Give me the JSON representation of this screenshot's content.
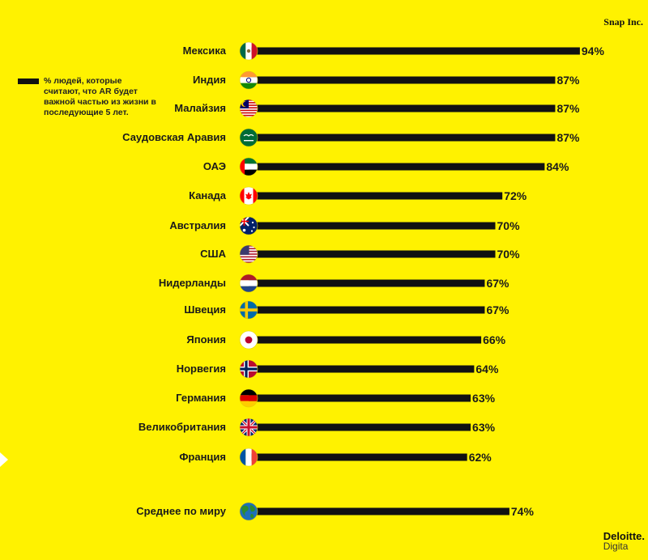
{
  "brand": {
    "top_right": "Snap Inc.",
    "bottom_right_line1": "Deloitte.",
    "bottom_right_line2": "Digita"
  },
  "legend": {
    "text": "% людей, которые считают, что AR будет важной частью из жизни в последующие 5 лет."
  },
  "chart_data": {
    "type": "bar",
    "orientation": "horizontal",
    "unit": "%",
    "xlim": [
      0,
      100
    ],
    "bar_color": "#111111",
    "background_color": "#FFF200",
    "categories": [
      "Мексика",
      "Индия",
      "Малайзия",
      "Саудовская Аравия",
      "ОАЭ",
      "Канада",
      "Австралия",
      "США",
      "Нидерланды",
      "Швеция",
      "Япония",
      "Норвегия",
      "Германия",
      "Великобритания",
      "Франция"
    ],
    "values": [
      94,
      87,
      87,
      87,
      84,
      72,
      70,
      70,
      67,
      67,
      66,
      64,
      63,
      63,
      62
    ],
    "value_labels": [
      "94%",
      "87%",
      "87%",
      "87%",
      "84%",
      "72%",
      "70%",
      "70%",
      "67%",
      "67%",
      "66%",
      "64%",
      "63%",
      "63%",
      "62%"
    ],
    "flags": [
      "mexico-flag-icon",
      "india-flag-icon",
      "malaysia-flag-icon",
      "saudi-arabia-flag-icon",
      "uae-flag-icon",
      "canada-flag-icon",
      "australia-flag-icon",
      "usa-flag-icon",
      "netherlands-flag-icon",
      "sweden-flag-icon",
      "japan-flag-icon",
      "norway-flag-icon",
      "germany-flag-icon",
      "uk-flag-icon",
      "france-flag-icon"
    ],
    "world_average": {
      "label": "Среднее по миру",
      "value": 74,
      "value_label": "74%",
      "icon": "globe-icon"
    }
  }
}
